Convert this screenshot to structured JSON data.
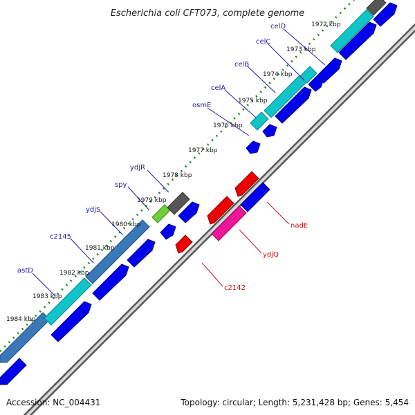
{
  "title": "Escherichia coli CFT073, complete genome",
  "footer": {
    "accession": "Accession: NC_004431",
    "summary": "Topology: circular; Length: 5,231,428 bp; Genes: 5,454"
  },
  "kbp_labels": [
    "1972 kbp",
    "1973 kbp",
    "1974 kbp",
    "1975 kbp",
    "1976 kbp",
    "1977 kbp",
    "1978 kbp",
    "1979 kbp",
    "1980 kbp",
    "1981 kbp",
    "1982 kbp",
    "1983 kbp",
    "1984 kbp"
  ],
  "genes_top": [
    "celD",
    "celC",
    "celB",
    "celA",
    "osmE",
    "ydjR",
    "spy",
    "ydjS",
    "c2145",
    "astD"
  ],
  "genes_bottom": [
    "nadE",
    "ydjQ",
    "c2142"
  ],
  "colors": {
    "forward": "#0000ee",
    "reverse": "#ee0000",
    "cyan": "#11c4c8",
    "steel": "#3a78b8",
    "gray": "#555555",
    "green": "#6fcf3a",
    "magenta": "#f0169a",
    "dots": "#1a8a1a",
    "top_label": "#1a1aa6",
    "bottom_label": "#cc1111"
  }
}
